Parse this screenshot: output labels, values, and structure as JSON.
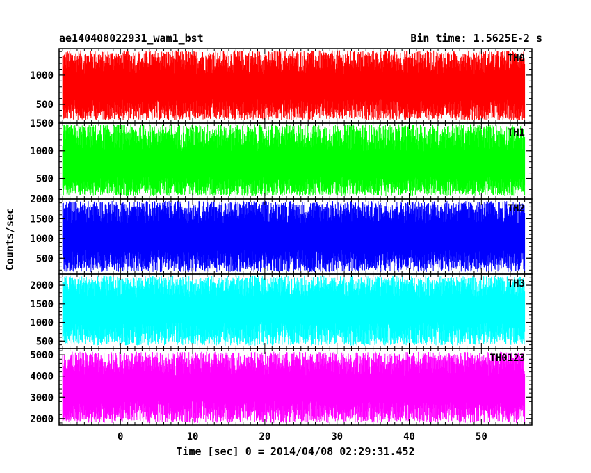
{
  "header": {
    "title_left": "ae140408022931_wam1_bst",
    "title_right": "Bin time: 1.5625E-2 s"
  },
  "chart_data": {
    "type": "line",
    "xlabel": "Time [sec] 0 = 2014/04/08 02:29:31.452",
    "ylabel": "Counts/sec",
    "xlim": [
      -8.5,
      57
    ],
    "x_data_range": [
      -8,
      56
    ],
    "bin_time_s": 0.015625,
    "x_ticks": [
      0,
      10,
      20,
      30,
      40,
      50
    ],
    "grid": false,
    "legend": "none",
    "panels": [
      {
        "name": "TH0",
        "color": "#ff0000",
        "ylim": [
          180,
          1450
        ],
        "y_ticks": [
          500,
          1000
        ],
        "top_tick_label": "",
        "level": {
          "baseline": 780,
          "low": 230,
          "high": 1420
        }
      },
      {
        "name": "TH1",
        "color": "#00ff00",
        "ylim": [
          130,
          1500
        ],
        "y_ticks": [
          500,
          1000
        ],
        "top_tick_label": "1500",
        "level": {
          "baseline": 720,
          "low": 180,
          "high": 1480
        }
      },
      {
        "name": "TH2",
        "color": "#0000ff",
        "ylim": [
          100,
          2000
        ],
        "y_ticks": [
          500,
          1000,
          1500
        ],
        "top_tick_label": "2000",
        "level": {
          "baseline": 1050,
          "low": 150,
          "high": 1950
        }
      },
      {
        "name": "TH3",
        "color": "#00ffff",
        "ylim": [
          300,
          2300
        ],
        "y_ticks": [
          500,
          1000,
          1500,
          2000
        ],
        "top_tick_label": "",
        "level": {
          "baseline": 1350,
          "low": 380,
          "high": 2250
        }
      },
      {
        "name": "TH0123",
        "color": "#ff00ff",
        "ylim": [
          1700,
          5300
        ],
        "y_ticks": [
          2000,
          3000,
          4000,
          5000
        ],
        "top_tick_label": "",
        "level": {
          "baseline": 3400,
          "low": 1800,
          "high": 5150
        }
      }
    ]
  }
}
